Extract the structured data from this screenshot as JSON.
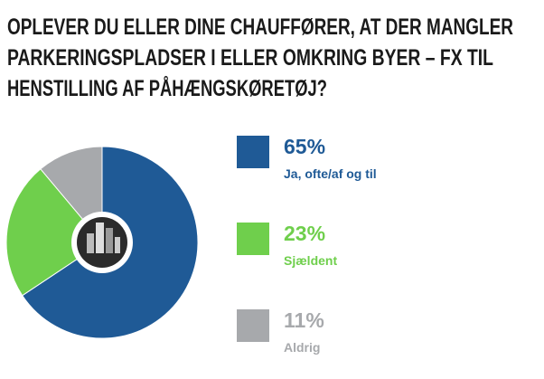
{
  "chart_data": {
    "type": "donut",
    "title": [
      "OPLEVER DU ELLER DINE CHAUFFØRER, AT DER MANGLER",
      "PARKERINGSPLADSER I ELLER OMKRING BYER – FX TIL",
      "HENSTILLING AF PÅHÆNGSKØRETØJ?"
    ],
    "categories": [
      "Ja, ofte/af og til",
      "Sjældent",
      "Aldrig"
    ],
    "values": [
      65,
      23,
      11
    ],
    "value_labels": [
      "65%",
      "23%",
      "11%"
    ],
    "colors": [
      "#1f5a96",
      "#6fcf4c",
      "#a7a9ac"
    ]
  }
}
